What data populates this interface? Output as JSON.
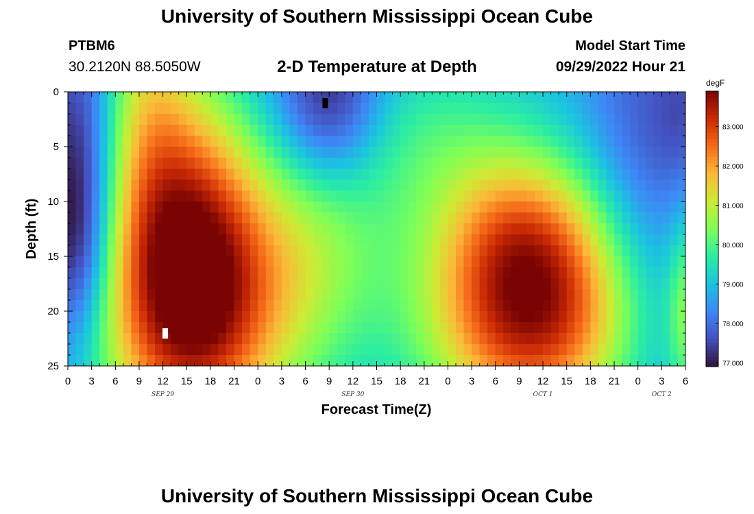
{
  "page": {
    "title_top": "University of Southern Mississippi Ocean Cube",
    "title_bottom": "University of Southern Mississippi Ocean Cube",
    "station": "PTBM6",
    "coords": "30.2120N  88.5050W",
    "subtitle": "2-D Temperature at Depth",
    "model_start_label": "Model Start Time",
    "model_start_value": "09/29/2022 Hour 21"
  },
  "chart_data": {
    "type": "heatmap",
    "title": "2-D Temperature at Depth",
    "xlabel": "Forecast Time(Z)",
    "ylabel": "Depth (ft)",
    "x_hours_start": 0,
    "x_hours_end": 78,
    "x_tick_labels": [
      "0",
      "3",
      "6",
      "9",
      "12",
      "15",
      "18",
      "21",
      "0",
      "3",
      "6",
      "9",
      "12",
      "15",
      "18",
      "21",
      "0",
      "3",
      "6",
      "9",
      "12",
      "15",
      "18",
      "21",
      "0",
      "3",
      "6"
    ],
    "date_labels": [
      {
        "label": "SEP 29",
        "hour": 12
      },
      {
        "label": "SEP 30",
        "hour": 36
      },
      {
        "label": "OCT 1",
        "hour": 60
      },
      {
        "label": "OCT 2",
        "hour": 75
      }
    ],
    "ylim": [
      0,
      25
    ],
    "y_ticks": [
      0,
      5,
      10,
      15,
      20,
      25
    ],
    "y_inverted": true,
    "colorbar": {
      "unit": "degF",
      "min": 76.9,
      "max": 83.9,
      "tick_labels": [
        "83.000",
        "82.000",
        "81.000",
        "80.000",
        "79.000",
        "78.000",
        "77.000"
      ],
      "tick_values": [
        83,
        82,
        81,
        80,
        79,
        78,
        77
      ]
    },
    "markers": [
      {
        "name": "min",
        "hour": 32.5,
        "depth": 1,
        "color": "#000000"
      },
      {
        "name": "max",
        "hour": 12.3,
        "depth": 22,
        "color": "#ffffff"
      }
    ],
    "grid": false
  }
}
